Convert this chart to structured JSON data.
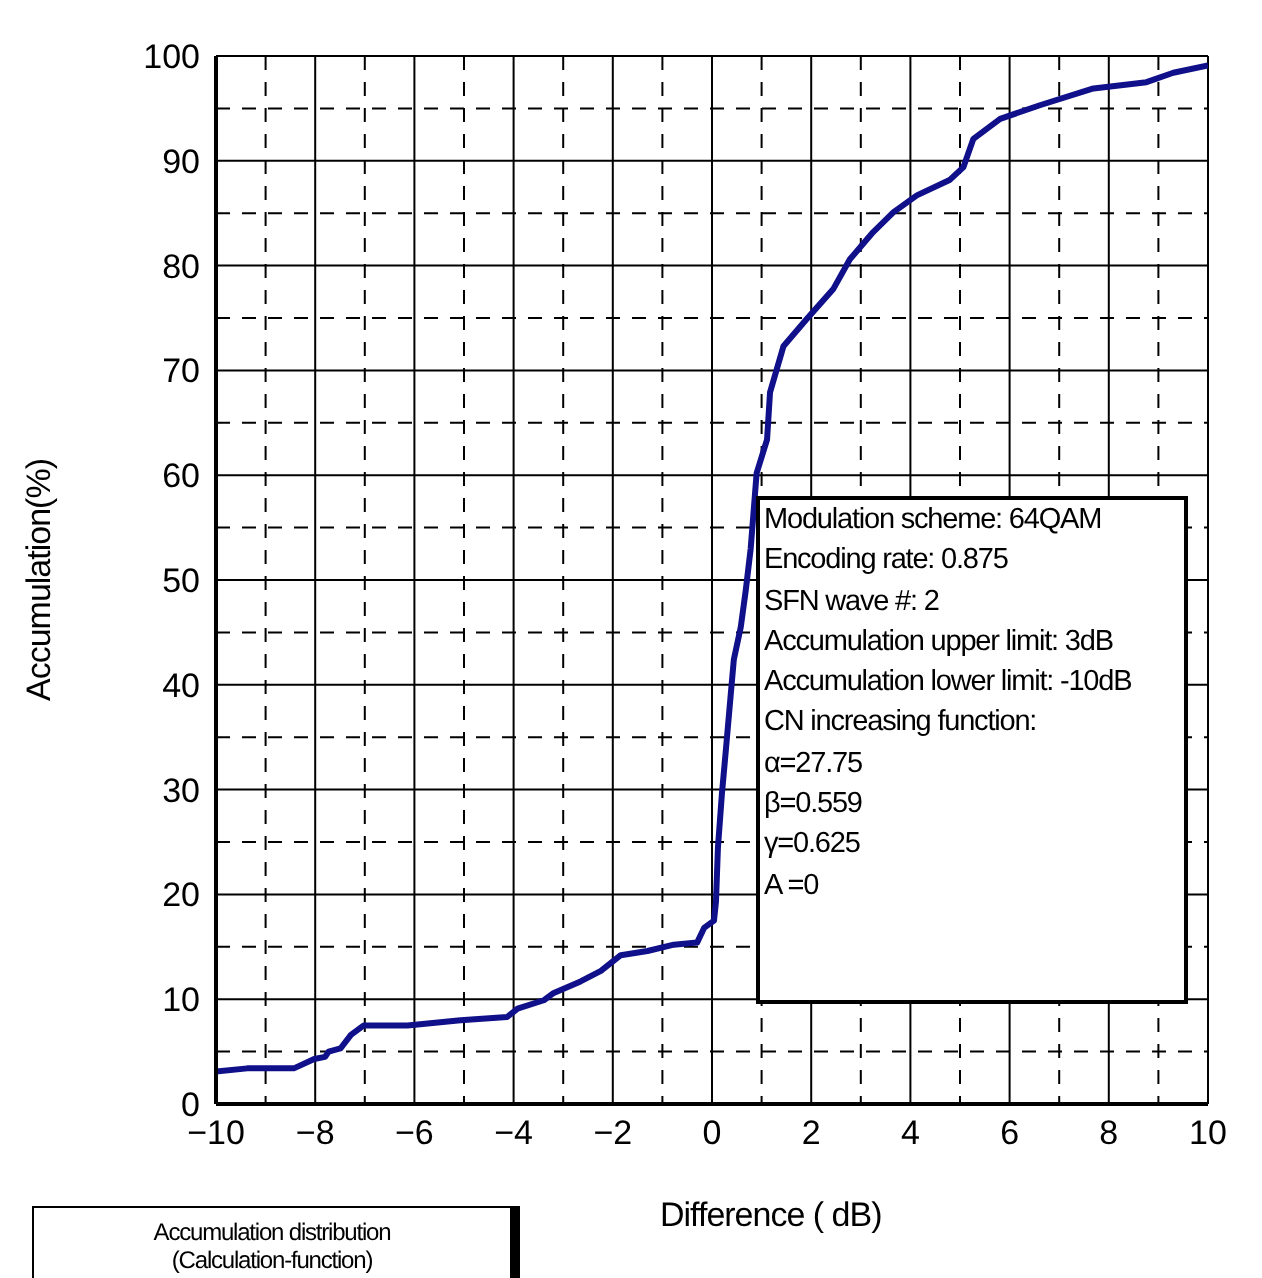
{
  "chart_data": {
    "type": "line",
    "xlabel": "Difference ( dB)",
    "ylabel": "Accumulation(%)",
    "x": [
      -10,
      -9.37,
      -8.43,
      -8.02,
      -7.8,
      -7.73,
      -7.49,
      -7.28,
      -7.02,
      -6.14,
      -5.07,
      -4.13,
      -3.92,
      -3.39,
      -3.19,
      -2.65,
      -2.24,
      -1.84,
      -1.3,
      -0.77,
      -0.3,
      -0.16,
      0.04,
      0.08,
      0.12,
      0.2,
      0.28,
      0.38,
      0.44,
      0.58,
      0.68,
      0.78,
      0.9,
      1.11,
      1.17,
      1.44,
      1.91,
      2.45,
      2.78,
      3.25,
      3.66,
      4.13,
      4.8,
      5.07,
      5.27,
      5.81,
      6.61,
      7.69,
      8.76,
      9.3,
      10
    ],
    "series": [
      {
        "color": "#10108a",
        "values": [
          3.1,
          3.4,
          3.4,
          4.3,
          4.5,
          5,
          5.3,
          6.6,
          7.5,
          7.5,
          8,
          8.3,
          9.1,
          9.9,
          10.6,
          11.7,
          12.7,
          14.2,
          14.6,
          15.2,
          15.4,
          16.8,
          17.5,
          19.3,
          24.5,
          29.6,
          33.8,
          39.2,
          42.4,
          45.5,
          49,
          53,
          60.2,
          63.4,
          67.9,
          72.3,
          74.9,
          77.8,
          80.6,
          83.2,
          85.1,
          86.7,
          88.2,
          89.4,
          92.1,
          94,
          95.3,
          96.9,
          97.5,
          98.4,
          99.1
        ]
      }
    ],
    "xlim": [
      -10,
      10
    ],
    "xticks": [
      -10,
      -8,
      -6,
      -4,
      -2,
      0,
      2,
      4,
      6,
      8,
      10
    ],
    "ylim": [
      0,
      100
    ],
    "yticks": [
      0,
      10,
      20,
      30,
      40,
      50,
      60,
      70,
      80,
      90,
      100
    ],
    "grid": true,
    "marker": "none",
    "line_style": "solid",
    "annotations": [
      [
        "Modulation scheme: 64QAM",
        "Encoding rate: 0.875",
        "SFN wave #: 2",
        "Accumulation upper limit: 3dB",
        "Accumulation lower limit: -10dB",
        "CN increasing function:",
        "α=27.75",
        "β=0.559",
        "γ=0.625",
        "A =0"
      ],
      [
        "Accumulation distribution",
        "(Calculation-function)"
      ]
    ]
  }
}
